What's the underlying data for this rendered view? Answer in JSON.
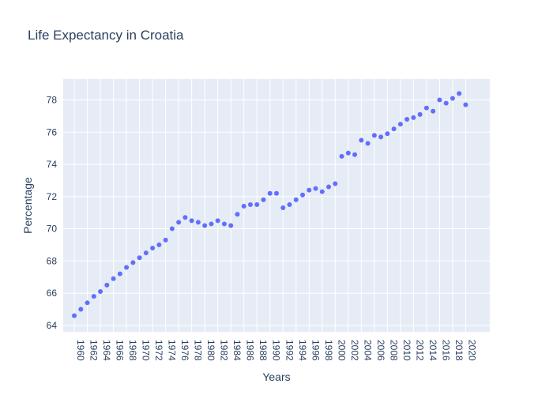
{
  "chart_data": {
    "type": "scatter",
    "title": "Life Expectancy in Croatia",
    "xlabel": "Years",
    "ylabel": "Percentage",
    "marker_color": "#636efa",
    "plot_bg": "#e5ecf6",
    "grid": true,
    "xlim": [
      1958.3,
      2023.7
    ],
    "ylim": [
      63.6,
      79.3
    ],
    "xticks": [
      1960,
      1962,
      1964,
      1966,
      1968,
      1970,
      1972,
      1974,
      1976,
      1978,
      1980,
      1982,
      1984,
      1986,
      1988,
      1990,
      1992,
      1994,
      1996,
      1998,
      2000,
      2002,
      2004,
      2006,
      2008,
      2010,
      2012,
      2014,
      2016,
      2018,
      2020
    ],
    "yticks": [
      64,
      66,
      68,
      70,
      72,
      74,
      76,
      78
    ],
    "x": [
      1960,
      1961,
      1962,
      1963,
      1964,
      1965,
      1966,
      1967,
      1968,
      1969,
      1970,
      1971,
      1972,
      1973,
      1974,
      1975,
      1976,
      1977,
      1978,
      1979,
      1980,
      1981,
      1982,
      1983,
      1984,
      1985,
      1986,
      1987,
      1988,
      1989,
      1990,
      1991,
      1992,
      1993,
      1994,
      1995,
      1996,
      1997,
      1998,
      1999,
      2000,
      2001,
      2002,
      2003,
      2004,
      2005,
      2006,
      2007,
      2008,
      2009,
      2010,
      2011,
      2012,
      2013,
      2014,
      2015,
      2016,
      2017,
      2018,
      2019,
      2020
    ],
    "y": [
      64.6,
      65.0,
      65.4,
      65.8,
      66.1,
      66.5,
      66.9,
      67.2,
      67.6,
      67.9,
      68.2,
      68.5,
      68.8,
      69.0,
      69.3,
      70.0,
      70.4,
      70.7,
      70.5,
      70.4,
      70.2,
      70.3,
      70.5,
      70.3,
      70.2,
      70.9,
      71.4,
      71.5,
      71.5,
      71.8,
      72.2,
      72.2,
      71.3,
      71.5,
      71.8,
      72.1,
      72.4,
      72.5,
      72.3,
      72.6,
      72.8,
      74.5,
      74.7,
      74.6,
      75.5,
      75.3,
      75.8,
      75.7,
      75.9,
      76.2,
      76.5,
      76.8,
      76.9,
      77.1,
      77.5,
      77.3,
      78.0,
      77.8,
      78.1,
      78.4,
      77.7
    ]
  }
}
